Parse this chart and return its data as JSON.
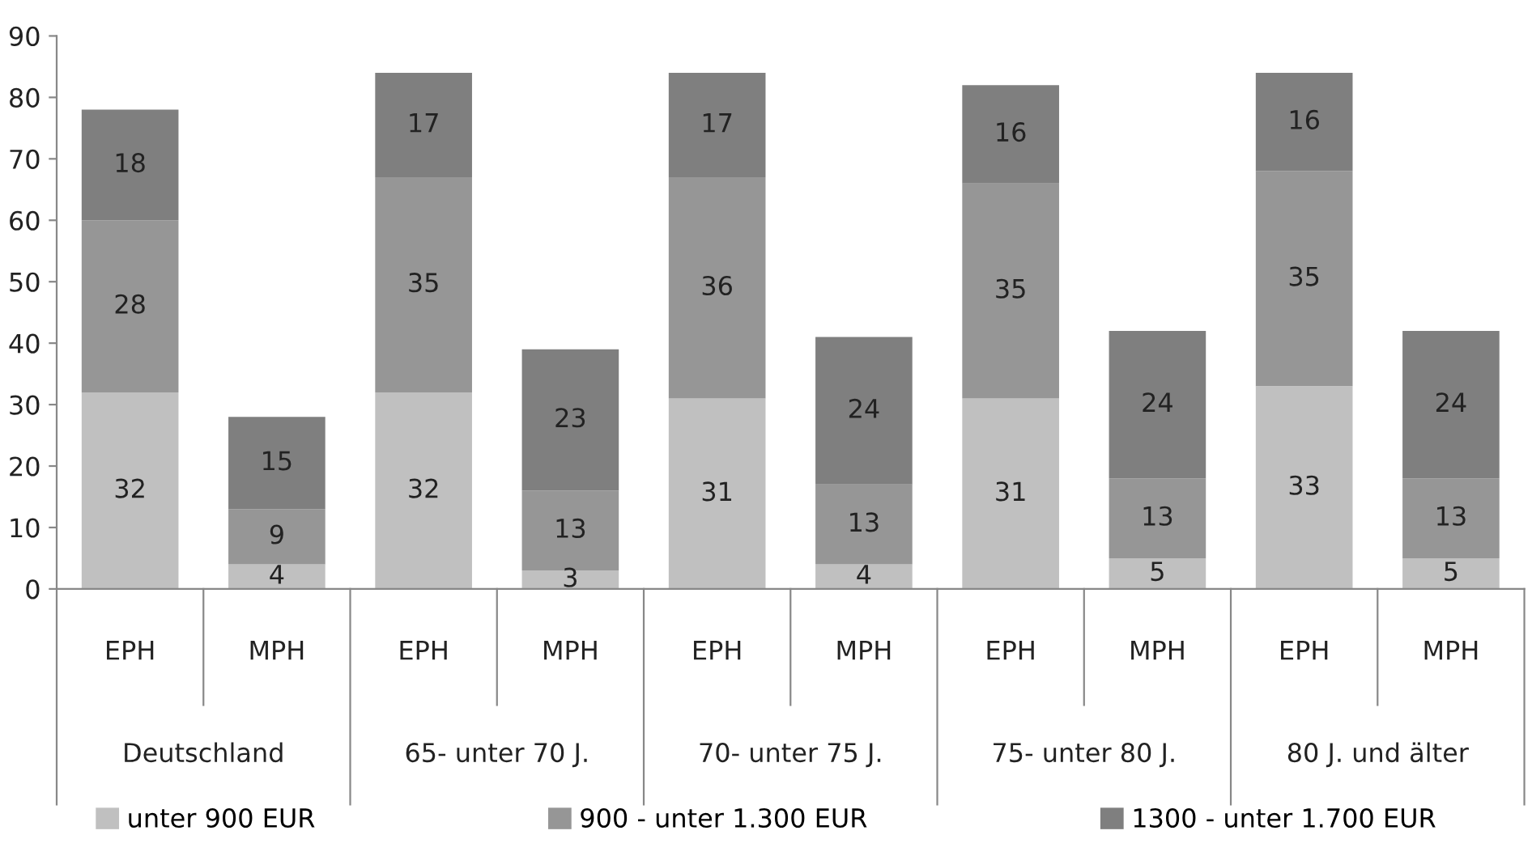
{
  "chart_data": {
    "type": "bar",
    "stacked": true,
    "data_labels": true,
    "grid": false,
    "legend": "bottom",
    "categories": [
      "EPH",
      "MPH",
      "EPH",
      "MPH",
      "EPH",
      "MPH",
      "EPH",
      "MPH",
      "EPH",
      "MPH"
    ],
    "annotations": [
      "Deutschland",
      "65- unter 70 J.",
      "70- unter 75 J.",
      "75- unter 80 J.",
      "80 J. und älter"
    ],
    "ylim": [
      0,
      90
    ],
    "yticks": [
      0,
      10,
      20,
      30,
      40,
      50,
      60,
      70,
      80,
      90
    ],
    "series": [
      {
        "name": "unter 900 EUR",
        "color": "#c0c0c0",
        "values": [
          32,
          4,
          32,
          3,
          31,
          4,
          31,
          5,
          33,
          5
        ]
      },
      {
        "name": "900 - unter 1.300 EUR",
        "color": "#969696",
        "values": [
          28,
          9,
          35,
          13,
          36,
          13,
          35,
          13,
          35,
          13
        ]
      },
      {
        "name": "1300 - unter 1.700 EUR",
        "color": "#7f7f7f",
        "values": [
          18,
          15,
          17,
          23,
          17,
          24,
          16,
          24,
          16,
          24
        ]
      }
    ]
  }
}
